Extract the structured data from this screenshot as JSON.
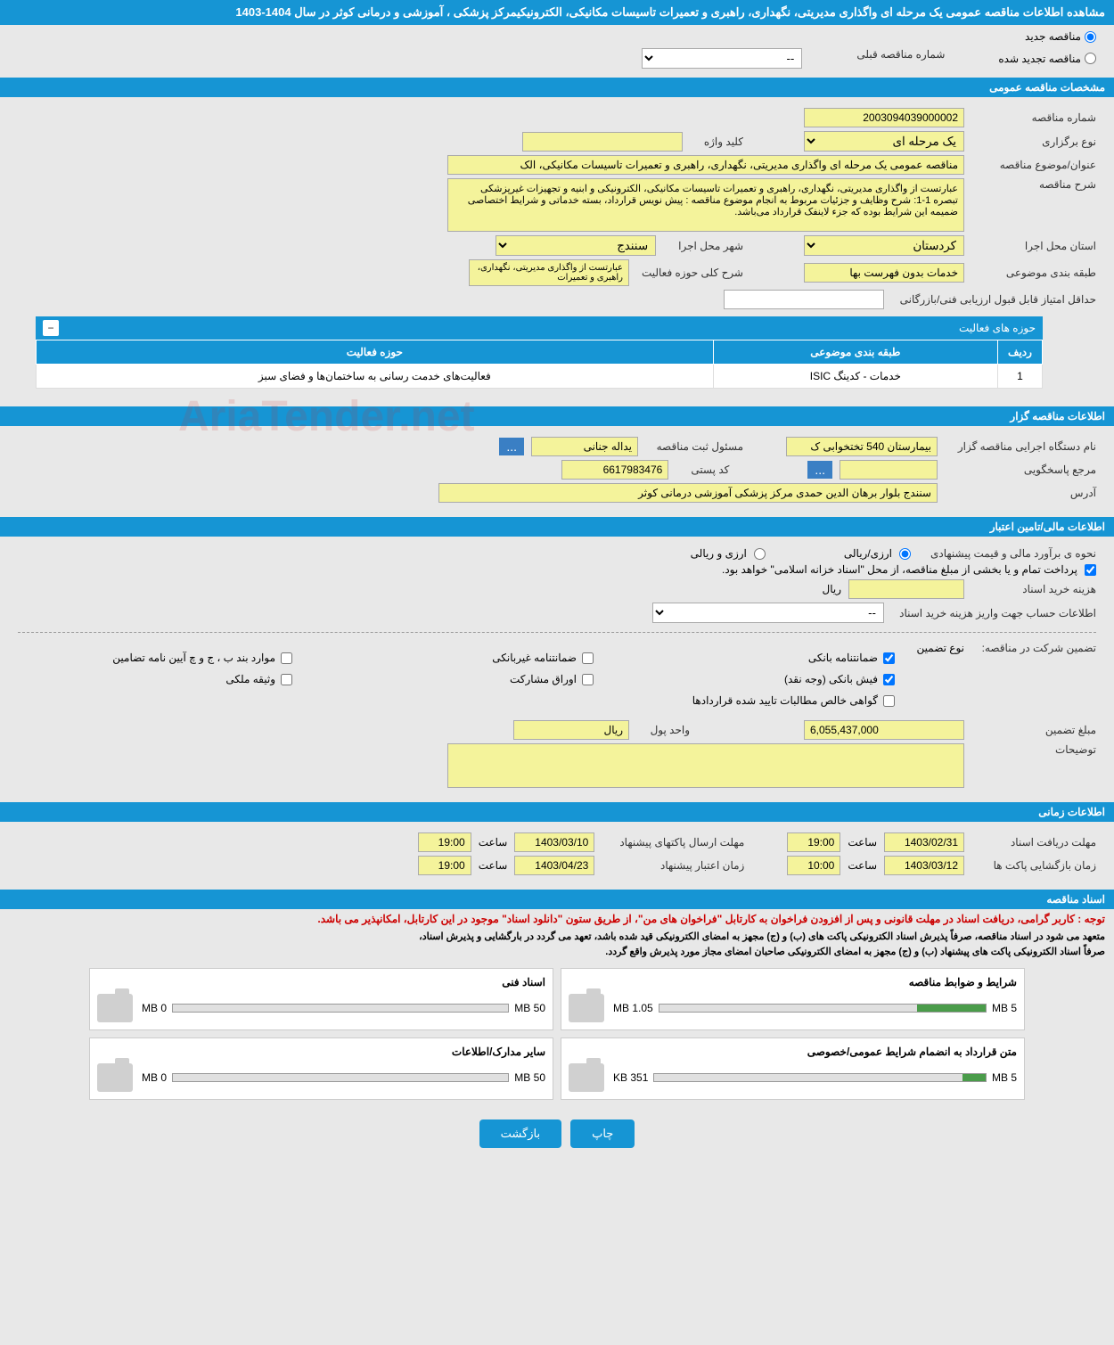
{
  "page_title": "مشاهده اطلاعات مناقصه عمومی یک مرحله ای واگذاری مدیریتی، نگهداری، راهبری و تعمیرات تاسیسات مکانیکی، الکترونیکیمرکز پزشکی ، آموزشی و درمانی کوثر در سال 1404-1403",
  "tender_type": {
    "new_label": "مناقصه جدید",
    "renewed_label": "مناقصه تجدید شده"
  },
  "prev_tender": {
    "label": "شماره مناقصه قبلی",
    "placeholder": "--"
  },
  "sections": {
    "general": "مشخصات مناقصه عمومی",
    "activities": "حوزه های فعالیت",
    "organizer": "اطلاعات مناقصه گزار",
    "financial": "اطلاعات مالی/تامین اعتبار",
    "timing": "اطلاعات زمانی",
    "documents": "اسناد مناقصه"
  },
  "general": {
    "tender_number_label": "شماره مناقصه",
    "tender_number": "2003094039000002",
    "holding_type_label": "نوع برگزاری",
    "holding_type": "یک مرحله ای",
    "keyword_label": "کلید واژه",
    "subject_label": "عنوان/موضوع مناقصه",
    "subject": "مناقصه عمومی یک مرحله ای واگذاری مدیریتی، نگهداری، راهبری و تعمیرات تاسیسات مکانیکی، الک",
    "description_label": "شرح مناقصه",
    "description": "عبارتست از واگذاری مدیریتی، نگهداری، راهبری و تعمیرات تاسیسات مکانیکی، الکترونیکی و ابنیه و تجهیزات غیرپزشکی\nتبصره 1-1: شرح وظایف و جزئیات مربوط به انجام موضوع مناقصه : پیش نویس قرارداد، بسته خدماتی و شرایط اختصاصی ضمیمه این شرایط بوده که جزء لاینفک قرارداد می‌باشد.",
    "province_label": "استان محل اجرا",
    "province": "کردستان",
    "city_label": "شهر محل اجرا",
    "city": "سنندج",
    "category_label": "طبقه بندی موضوعی",
    "category": "خدمات بدون فهرست بها",
    "activity_scope_label": "شرح کلی حوزه فعالیت",
    "activity_scope": "عبارتست از واگذاری مدیریتی، نگهداری، راهبری و تعمیرات",
    "min_score_label": "حداقل امتیاز قابل قبول ارزیابی فنی/بازرگانی"
  },
  "activities_table": {
    "col_row": "ردیف",
    "col_category": "طبقه بندی موضوعی",
    "col_activity": "حوزه فعالیت",
    "rows": [
      {
        "num": "1",
        "category": "خدمات - کدینگ ISIC",
        "activity": "فعالیت‌های خدمت رسانی به ساختمان‌ها و فضای سبز"
      }
    ]
  },
  "organizer": {
    "name_label": "نام دستگاه اجرایی مناقصه گزار",
    "name": "بیمارستان 540 تختخوابی ک",
    "registrar_label": "مسئول ثبت مناقصه",
    "registrar": "یداله جنانی",
    "more_btn": "...",
    "contact_label": "مرجع پاسخگویی",
    "contact_btn": "...",
    "postal_label": "کد پستی",
    "postal": "6617983476",
    "address_label": "آدرس",
    "address": "سنندج بلوار برهان الدین حمدی مرکز پزشکی آموزشی درمانی کوثر"
  },
  "financial": {
    "estimate_label": "نحوه ی برآورد مالی و قیمت پیشنهادی",
    "currency_rial": "ارزی/ریالی",
    "currency_foreign": "ارزی و ریالی",
    "payment_note": "پرداخت تمام و یا بخشی از مبلغ مناقصه، از محل \"اسناد خزانه اسلامی\" خواهد بود.",
    "doc_cost_label": "هزینه خرید اسناد",
    "rial_unit": "ریال",
    "account_label": "اطلاعات حساب جهت واریز هزینه خرید اسناد",
    "account_placeholder": "--",
    "guarantee_label": "تضمین شرکت در مناقصه:",
    "guarantee_type_label": "نوع تضمین",
    "guarantees": {
      "bank": "ضمانتنامه بانکی",
      "nonbank": "ضمانتنامه غیربانکی",
      "regulation": "موارد بند ب ، ج و چ آیین نامه تضامین",
      "cash": "فیش بانکی (وجه نقد)",
      "bonds": "اوراق مشارکت",
      "property": "وثیقه ملکی",
      "contract_cert": "گواهی خالص مطالبات تایید شده قراردادها"
    },
    "amount_label": "مبلغ تضمین",
    "amount": "6,055,437,000",
    "currency_unit_label": "واحد پول",
    "currency_unit": "ریال",
    "notes_label": "توضیحات"
  },
  "timing": {
    "doc_deadline_label": "مهلت دریافت اسناد",
    "doc_deadline_date": "1403/02/31",
    "doc_deadline_time": "19:00",
    "envelope_deadline_label": "مهلت ارسال پاکتهای پیشنهاد",
    "envelope_deadline_date": "1403/03/10",
    "envelope_deadline_time": "19:00",
    "opening_label": "زمان بازگشایی پاکت ها",
    "opening_date": "1403/03/12",
    "opening_time": "10:00",
    "validity_label": "زمان اعتبار پیشنهاد",
    "validity_date": "1403/04/23",
    "validity_time": "19:00",
    "hour_label": "ساعت"
  },
  "documents": {
    "warning": "توجه : کاربر گرامی، دریافت اسناد در مهلت قانونی و پس از افزودن فراخوان به کارتابل \"فراخوان های من\"، از طریق ستون \"دانلود اسناد\" موجود در این کارتابل، امکانپذیر می باشد.",
    "info1": "متعهد می شود در اسناد مناقصه، صرفاً پذیرش اسناد الکترونیکی پاکت های (ب) و (ج) مجهز به امضای الکترونیکی قید شده باشد، تعهد می گردد در بارگشایی و پذیرش اسناد،",
    "info2": "صرفاً اسناد الکترونیکی پاکت های پیشنهاد (ب) و (ج) مجهز به امضای الکترونیکی صاحبان امضای مجاز مورد پذیرش واقع گردد.",
    "cards": [
      {
        "title": "شرایط و ضوابط مناقصه",
        "used": "1.05 MB",
        "total": "5 MB",
        "fill_pct": 21
      },
      {
        "title": "اسناد فنی",
        "used": "0 MB",
        "total": "50 MB",
        "fill_pct": 0
      },
      {
        "title": "متن قرارداد به انضمام شرایط عمومی/خصوصی",
        "used": "351 KB",
        "total": "5 MB",
        "fill_pct": 7
      },
      {
        "title": "سایر مدارک/اطلاعات",
        "used": "0 MB",
        "total": "50 MB",
        "fill_pct": 0
      }
    ]
  },
  "buttons": {
    "print": "چاپ",
    "back": "بازگشت"
  },
  "watermark": "AriaTender.net"
}
